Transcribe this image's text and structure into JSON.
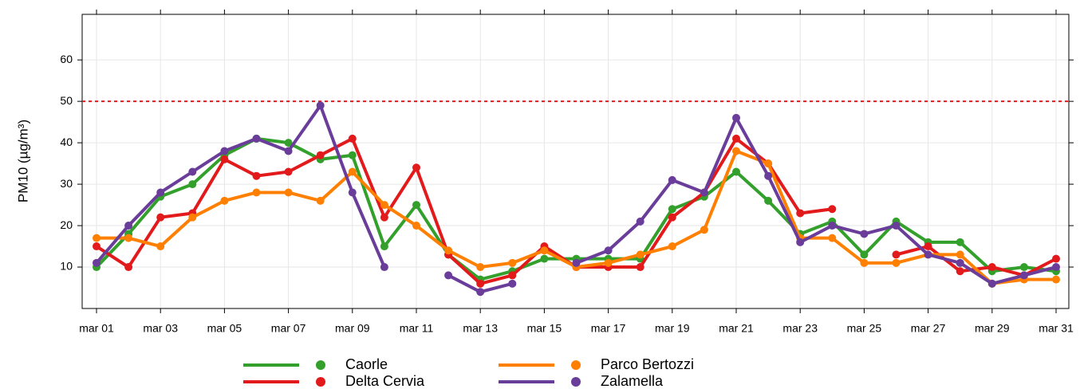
{
  "chart_data": {
    "type": "line",
    "y_label": "PM10 (µg/m³)",
    "categories": [
      "mar 01",
      null,
      "mar 03",
      null,
      "mar 05",
      null,
      "mar 07",
      null,
      "mar 09",
      null,
      "mar 11",
      null,
      "mar 13",
      null,
      "mar 15",
      null,
      "mar 17",
      null,
      "mar 19",
      null,
      "mar 21",
      null,
      "mar 23",
      null,
      "mar 25",
      null,
      "mar 27",
      null,
      "mar 29",
      null,
      "mar 31"
    ],
    "series": [
      {
        "name": "Caorle",
        "color": "#33a02c",
        "values": [
          10,
          18,
          27,
          30,
          37,
          41,
          40,
          36,
          37,
          15,
          25,
          13,
          7,
          9,
          12,
          12,
          12,
          12,
          24,
          27,
          33,
          26,
          18,
          21,
          13,
          21,
          16,
          16,
          9,
          10,
          9
        ]
      },
      {
        "name": "Delta Cervia",
        "color": "#e31a1c",
        "values": [
          15,
          10,
          22,
          23,
          36,
          32,
          33,
          37,
          41,
          22,
          34,
          13,
          6,
          8,
          15,
          10,
          10,
          10,
          22,
          28,
          41,
          35,
          23,
          24,
          null,
          13,
          15,
          9,
          10,
          8,
          12
        ]
      },
      {
        "name": "Parco Bertozzi",
        "color": "#ff7f00",
        "values": [
          17,
          17,
          15,
          22,
          26,
          28,
          28,
          26,
          33,
          25,
          20,
          14,
          10,
          11,
          14,
          10,
          11,
          13,
          15,
          19,
          38,
          35,
          17,
          17,
          11,
          11,
          13,
          13,
          6,
          7,
          7
        ]
      },
      {
        "name": "Zalamella",
        "color": "#6a3d9a",
        "values": [
          11,
          20,
          28,
          33,
          38,
          41,
          38,
          49,
          28,
          10,
          null,
          8,
          4,
          6,
          null,
          11,
          14,
          21,
          31,
          28,
          46,
          32,
          16,
          20,
          18,
          20,
          13,
          11,
          6,
          8,
          10
        ]
      }
    ],
    "threshold": 50,
    "threshold_color": "#e31a1c",
    "ylim": [
      0,
      71
    ],
    "yticks": [
      10,
      20,
      30,
      40,
      50,
      60
    ],
    "grid": true
  }
}
